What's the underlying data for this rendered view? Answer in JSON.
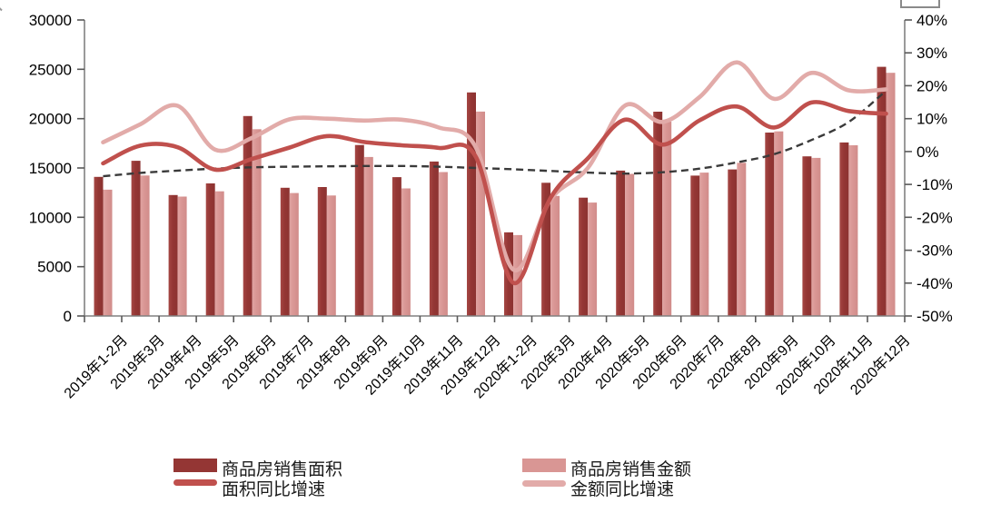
{
  "chart_data": {
    "type": "combo-bar-line",
    "title": "",
    "categories": [
      "2019年1-2月",
      "2019年3月",
      "2019年4月",
      "2019年5月",
      "2019年6月",
      "2019年7月",
      "2019年8月",
      "2019年9月",
      "2019年10月",
      "2019年11月",
      "2019年12月",
      "2020年1-2月",
      "2020年3月",
      "2020年4月",
      "2020年5月",
      "2020年6月",
      "2020年7月",
      "2020年8月",
      "2020年9月",
      "2020年10月",
      "2020年11月",
      "2020年12月"
    ],
    "left_axis": {
      "min": 0,
      "max": 30000,
      "step": 5000,
      "tick_labels": [
        "30000",
        "25000",
        "20000",
        "15000",
        "10000",
        "5000",
        "0"
      ]
    },
    "right_axis": {
      "min": -50,
      "max": 40,
      "step": 10,
      "tick_labels": [
        "40%",
        "30%",
        "20%",
        "10%",
        "0%",
        "-10%",
        "-20%",
        "-30%",
        "-40%",
        "-50%"
      ]
    },
    "grid": "off",
    "legend_position": "bottom",
    "series": [
      {
        "name": "商品房销售面积",
        "type": "bar",
        "axis": "left",
        "color": "#943634",
        "values": [
          14102,
          15727,
          12256,
          13433,
          20268,
          12997,
          13066,
          17330,
          14072,
          15654,
          22653,
          8475,
          13503,
          11995,
          14730,
          20701,
          14227,
          14855,
          18587,
          16175,
          17586,
          25252
        ]
      },
      {
        "name": "商品房销售金额",
        "type": "bar",
        "axis": "left",
        "color": "#D99694",
        "values": [
          12803,
          14236,
          12102,
          12632,
          18925,
          12464,
          12211,
          16118,
          12926,
          14589,
          20719,
          8203,
          12162,
          11498,
          14406,
          19700,
          14527,
          15521,
          18704,
          16018,
          17304,
          24644
        ]
      },
      {
        "name": "面积同比增速",
        "type": "line",
        "axis": "right",
        "color": "#C0504D",
        "values": [
          -3.6,
          1.8,
          1.3,
          -5.5,
          -2.2,
          1.2,
          4.7,
          2.9,
          1.9,
          1.1,
          -1.7,
          -39.9,
          -14.1,
          -2.1,
          9.7,
          2.1,
          9.5,
          13.7,
          7.3,
          14.9,
          12.3,
          11.5
        ]
      },
      {
        "name": "金额同比增速",
        "type": "line",
        "axis": "right",
        "color": "#E2ABA9",
        "values": [
          2.8,
          8.3,
          13.9,
          0.6,
          4.2,
          9.8,
          10.0,
          9.4,
          9.7,
          7.3,
          1.2,
          -35.9,
          -14.6,
          -5.0,
          14.0,
          9.0,
          16.6,
          27.1,
          16.0,
          23.9,
          18.6,
          18.9
        ]
      },
      {
        "name": "趋势线",
        "type": "dashed-line",
        "axis": "right",
        "color": "#3a3a3a",
        "values": [
          -7.5,
          -6.5,
          -5.8,
          -5.2,
          -4.8,
          -4.6,
          -4.5,
          -4.4,
          -4.4,
          -4.6,
          -5.0,
          -5.4,
          -5.9,
          -6.4,
          -6.7,
          -6.3,
          -5.2,
          -3.3,
          -0.8,
          3.5,
          9.0,
          18.5
        ]
      }
    ],
    "legend": [
      {
        "label": "商品房销售面积",
        "swatch": "bar",
        "color": "#943634"
      },
      {
        "label": "面积同比增速",
        "swatch": "line",
        "color": "#C0504D"
      },
      {
        "label": "商品房销售金额",
        "swatch": "bar",
        "color": "#D99694"
      },
      {
        "label": "金额同比增速",
        "swatch": "line",
        "color": "#E2ABA9"
      }
    ],
    "colors": {
      "bar_dark": "#943634",
      "bar_light": "#D99694",
      "line_dark": "#C0504D",
      "line_light": "#E2ABA9",
      "trend": "#3a3a3a",
      "axis": "#808080"
    }
  }
}
